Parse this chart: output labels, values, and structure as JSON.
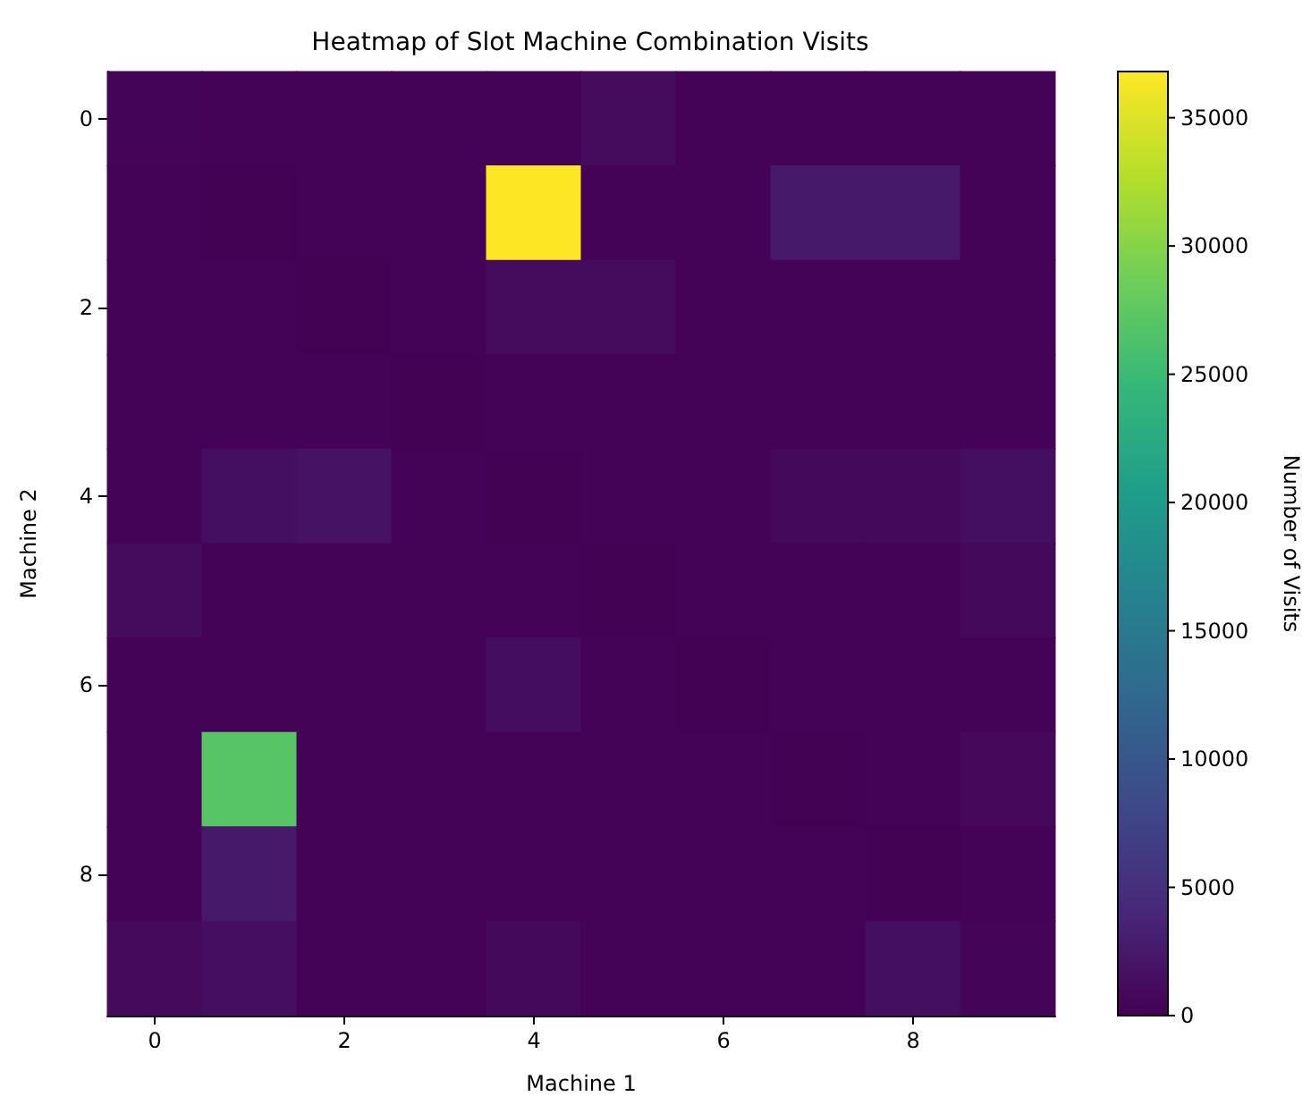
{
  "chart_data": {
    "type": "heatmap",
    "title": "Heatmap of Slot Machine Combination Visits",
    "xlabel": "Machine 1",
    "ylabel": "Machine 2",
    "clabel": "Number of Visits",
    "categories": [
      "0",
      null,
      "2",
      null,
      "4",
      null,
      "6",
      null,
      "8",
      null
    ],
    "y_categories": [
      "0",
      null,
      "2",
      null,
      "4",
      null,
      "6",
      null,
      "8",
      null
    ],
    "cells": [
      [
        300,
        200,
        200,
        200,
        200,
        1000,
        200,
        200,
        200,
        200
      ],
      [
        200,
        100,
        200,
        200,
        36800,
        200,
        200,
        2500,
        2500,
        200
      ],
      [
        200,
        200,
        100,
        200,
        1000,
        1000,
        200,
        200,
        200,
        200
      ],
      [
        200,
        200,
        200,
        100,
        200,
        200,
        200,
        200,
        200,
        200
      ],
      [
        200,
        1500,
        1800,
        200,
        100,
        200,
        200,
        800,
        800,
        1500
      ],
      [
        1000,
        200,
        200,
        200,
        200,
        100,
        200,
        200,
        200,
        800
      ],
      [
        200,
        200,
        200,
        200,
        1300,
        200,
        100,
        200,
        200,
        200
      ],
      [
        200,
        27000,
        200,
        200,
        200,
        200,
        200,
        100,
        200,
        700
      ],
      [
        200,
        2500,
        200,
        200,
        200,
        200,
        200,
        200,
        100,
        200
      ],
      [
        900,
        1400,
        200,
        200,
        800,
        200,
        200,
        200,
        1500,
        300
      ]
    ],
    "clim": [
      0,
      36800
    ],
    "cticks": [
      0,
      5000,
      10000,
      15000,
      20000,
      25000,
      30000,
      35000
    ]
  }
}
